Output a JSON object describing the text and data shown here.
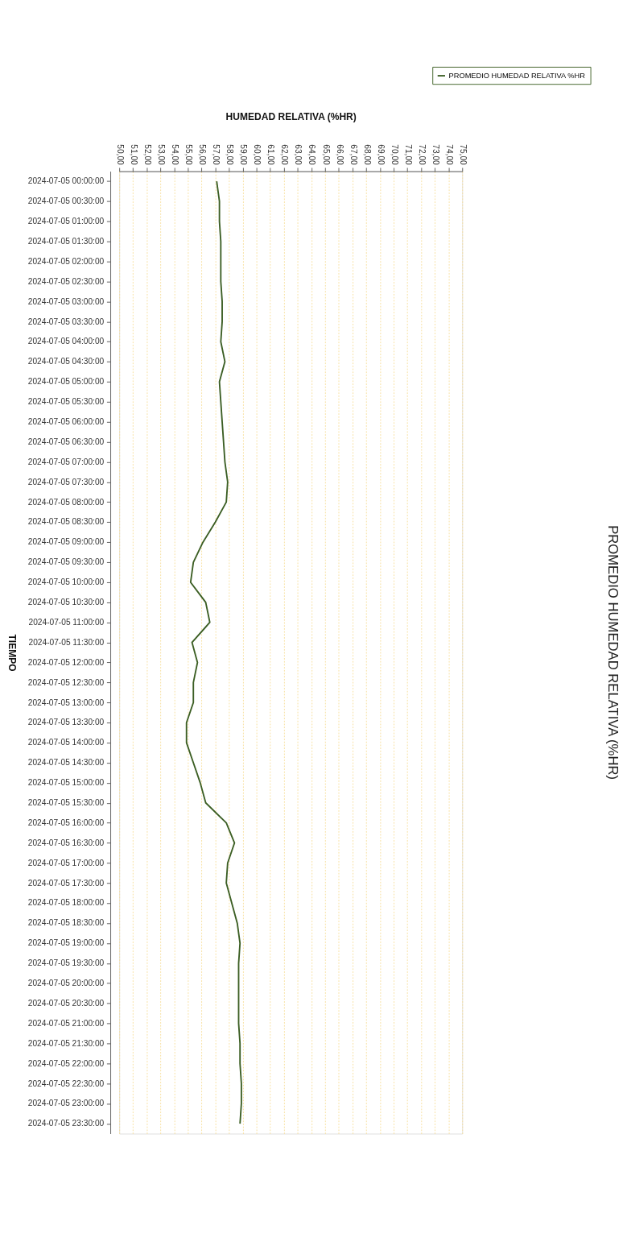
{
  "chart_data": {
    "type": "line",
    "orientation": "horizontal",
    "title": "PROMEDIO HUMEDAD RELATIVA (%HR)",
    "xlabel": "HUMEDAD RELATIVA (%HR)",
    "ylabel": "TIEMPO",
    "categories": [
      "2024-07-05 00:00:00",
      "2024-07-05 00:30:00",
      "2024-07-05 01:00:00",
      "2024-07-05 01:30:00",
      "2024-07-05 02:00:00",
      "2024-07-05 02:30:00",
      "2024-07-05 03:00:00",
      "2024-07-05 03:30:00",
      "2024-07-05 04:00:00",
      "2024-07-05 04:30:00",
      "2024-07-05 05:00:00",
      "2024-07-05 05:30:00",
      "2024-07-05 06:00:00",
      "2024-07-05 06:30:00",
      "2024-07-05 07:00:00",
      "2024-07-05 07:30:00",
      "2024-07-05 08:00:00",
      "2024-07-05 08:30:00",
      "2024-07-05 09:00:00",
      "2024-07-05 09:30:00",
      "2024-07-05 10:00:00",
      "2024-07-05 10:30:00",
      "2024-07-05 11:00:00",
      "2024-07-05 11:30:00",
      "2024-07-05 12:00:00",
      "2024-07-05 12:30:00",
      "2024-07-05 13:00:00",
      "2024-07-05 13:30:00",
      "2024-07-05 14:00:00",
      "2024-07-05 14:30:00",
      "2024-07-05 15:00:00",
      "2024-07-05 15:30:00",
      "2024-07-05 16:00:00",
      "2024-07-05 16:30:00",
      "2024-07-05 17:00:00",
      "2024-07-05 17:30:00",
      "2024-07-05 18:00:00",
      "2024-07-05 18:30:00",
      "2024-07-05 19:00:00",
      "2024-07-05 19:30:00",
      "2024-07-05 20:00:00",
      "2024-07-05 20:30:00",
      "2024-07-05 21:00:00",
      "2024-07-05 21:30:00",
      "2024-07-05 22:00:00",
      "2024-07-05 22:30:00",
      "2024-07-05 23:00:00",
      "2024-07-05 23:30:00"
    ],
    "series": [
      {
        "name": "PROMEDIO HUMEDAD RELATIVA %HR",
        "color": "#3b5e23",
        "values": [
          57.1,
          57.3,
          57.3,
          57.4,
          57.4,
          57.4,
          57.5,
          57.5,
          57.4,
          57.7,
          57.3,
          57.4,
          57.5,
          57.6,
          57.7,
          57.9,
          57.8,
          57.0,
          56.1,
          55.4,
          55.2,
          56.3,
          56.6,
          55.3,
          55.7,
          55.4,
          55.4,
          54.9,
          54.9,
          55.4,
          55.9,
          56.3,
          57.8,
          58.4,
          57.9,
          57.8,
          58.2,
          58.6,
          58.8,
          58.7,
          58.7,
          58.7,
          58.7,
          58.8,
          58.8,
          58.9,
          58.9,
          58.8
        ]
      }
    ],
    "xlim": [
      50,
      75
    ],
    "xticks": [
      {
        "value": 50,
        "label": "50,00"
      },
      {
        "value": 51,
        "label": "51,00"
      },
      {
        "value": 52,
        "label": "52,00"
      },
      {
        "value": 53,
        "label": "53,00"
      },
      {
        "value": 54,
        "label": "54,00"
      },
      {
        "value": 55,
        "label": "55,00"
      },
      {
        "value": 56,
        "label": "56,00"
      },
      {
        "value": 57,
        "label": "57,00"
      },
      {
        "value": 58,
        "label": "58,00"
      },
      {
        "value": 59,
        "label": "59,00"
      },
      {
        "value": 60,
        "label": "60,00"
      },
      {
        "value": 61,
        "label": "61,00"
      },
      {
        "value": 62,
        "label": "62,00"
      },
      {
        "value": 63,
        "label": "63,00"
      },
      {
        "value": 64,
        "label": "64,00"
      },
      {
        "value": 65,
        "label": "65,00"
      },
      {
        "value": 66,
        "label": "66,00"
      },
      {
        "value": 67,
        "label": "67,00"
      },
      {
        "value": 68,
        "label": "68,00"
      },
      {
        "value": 69,
        "label": "69,00"
      },
      {
        "value": 70,
        "label": "70,00"
      },
      {
        "value": 71,
        "label": "71,00"
      },
      {
        "value": 72,
        "label": "72,00"
      },
      {
        "value": 73,
        "label": "73,00"
      },
      {
        "value": 74,
        "label": "74,00"
      },
      {
        "value": 75,
        "label": "75,00"
      }
    ],
    "grid": "x",
    "legend": "top right"
  }
}
